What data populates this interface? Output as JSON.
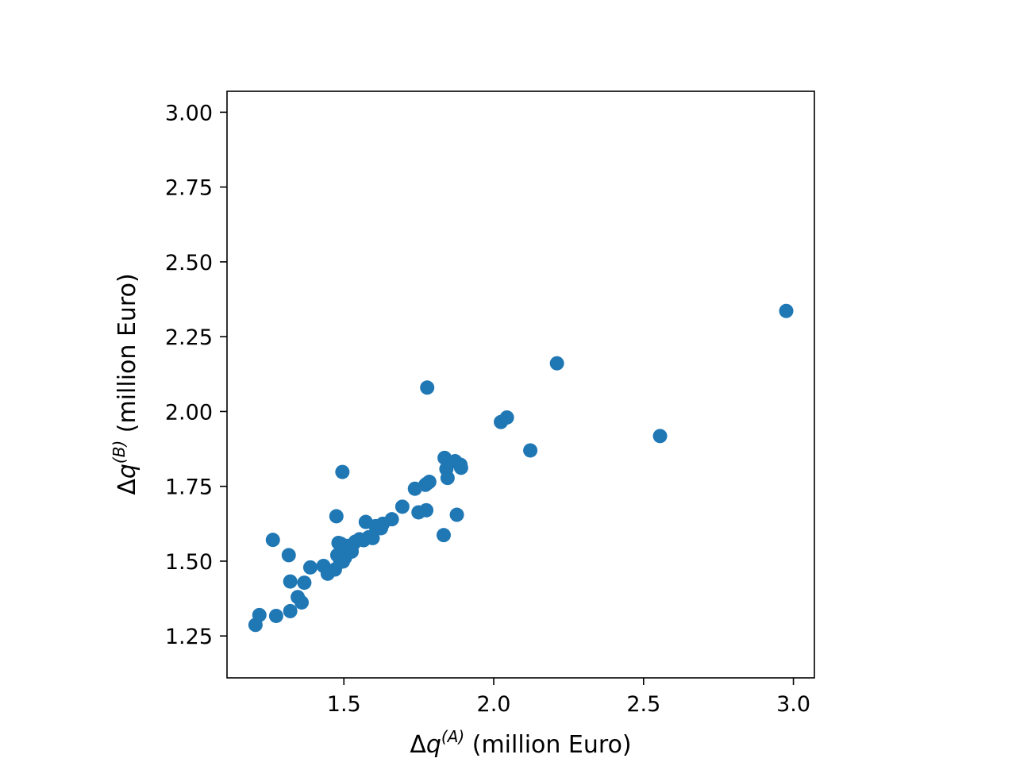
{
  "chart_data": {
    "type": "scatter",
    "xlabel": "Δq^(A) (million Euro)",
    "ylabel": "Δq^(B) (million Euro)",
    "xlabel_parts": {
      "base": "Δ",
      "var": "q",
      "sup": "(A)",
      "unit": " (million Euro)"
    },
    "ylabel_parts": {
      "base": "Δ",
      "var": "q",
      "sup": "(B)",
      "unit": " (million Euro)"
    },
    "xlim": [
      1.11,
      3.07
    ],
    "ylim": [
      1.11,
      3.07
    ],
    "xticks": [
      1.5,
      2.0,
      2.5,
      3.0
    ],
    "yticks": [
      1.25,
      1.5,
      1.75,
      2.0,
      2.25,
      2.5,
      2.75,
      3.0
    ],
    "xtick_labels": [
      "1.5",
      "2.0",
      "2.5",
      "3.0"
    ],
    "ytick_labels": [
      "1.25",
      "1.50",
      "1.75",
      "2.00",
      "2.25",
      "2.50",
      "2.75",
      "3.00"
    ],
    "grid": false,
    "marker_color": "#1f77b4",
    "series": [
      {
        "x": [
          1.205,
          1.218,
          1.263,
          1.274,
          1.316,
          1.321,
          1.321,
          1.346,
          1.359,
          1.368,
          1.388,
          1.432,
          1.446,
          1.47,
          1.475,
          1.478,
          1.482,
          1.488,
          1.49,
          1.493,
          1.497,
          1.5,
          1.504,
          1.512,
          1.518,
          1.526,
          1.53,
          1.538,
          1.552,
          1.566,
          1.573,
          1.583,
          1.596,
          1.606,
          1.624,
          1.63,
          1.66,
          1.695,
          1.737,
          1.749,
          1.772,
          1.775,
          1.777,
          1.785,
          1.833,
          1.836,
          1.842,
          1.846,
          1.871,
          1.877,
          1.889,
          1.891,
          1.495,
          1.778,
          2.024,
          2.044,
          2.122,
          2.211,
          2.555,
          2.976
        ],
        "y": [
          1.287,
          1.32,
          1.571,
          1.317,
          1.52,
          1.432,
          1.333,
          1.38,
          1.362,
          1.428,
          1.479,
          1.484,
          1.458,
          1.472,
          1.65,
          1.52,
          1.561,
          1.497,
          1.558,
          1.527,
          1.499,
          1.54,
          1.512,
          1.551,
          1.545,
          1.532,
          1.555,
          1.565,
          1.573,
          1.57,
          1.631,
          1.58,
          1.577,
          1.617,
          1.61,
          1.625,
          1.64,
          1.682,
          1.742,
          1.663,
          1.755,
          1.67,
          1.759,
          1.765,
          1.587,
          1.845,
          1.808,
          1.778,
          1.834,
          1.655,
          1.822,
          1.812,
          1.798,
          2.08,
          1.965,
          1.98,
          1.87,
          2.161,
          1.918,
          2.336
        ]
      }
    ]
  }
}
